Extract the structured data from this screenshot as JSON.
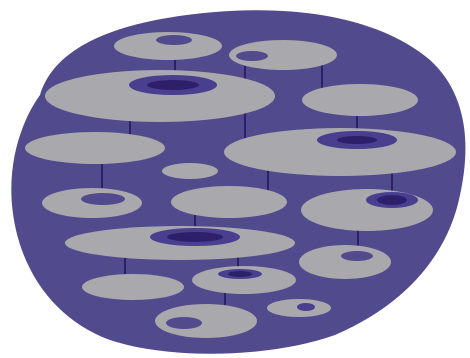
{
  "colors": {
    "background": "#ffffff",
    "blob": "#514a8c",
    "disc": "#a8a8ad",
    "ring": "#4a3f8f",
    "core": "#2e1f6b",
    "connector": "#2e1f6b"
  },
  "icons": [
    "abstract-blob-illustration",
    "floating-disc-shapes",
    "vertical-connector-lines"
  ]
}
